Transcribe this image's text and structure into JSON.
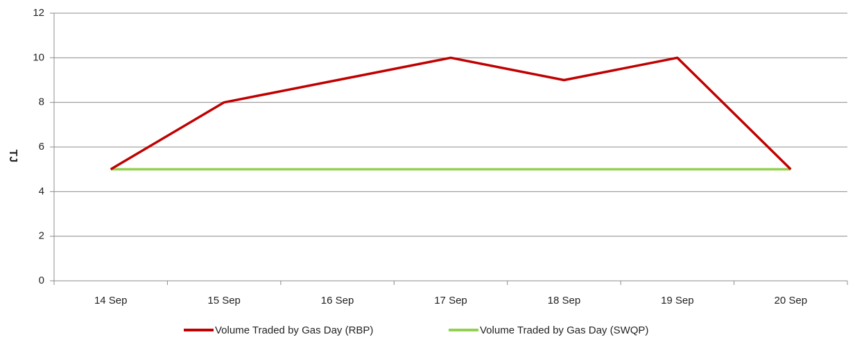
{
  "chart_data": {
    "type": "line",
    "ylabel": "TJ",
    "categories": [
      "14 Sep",
      "15 Sep",
      "16 Sep",
      "17 Sep",
      "18 Sep",
      "19 Sep",
      "20 Sep"
    ],
    "series": [
      {
        "name": "Volume Traded by Gas Day (RBP)",
        "color": "#c00000",
        "values": [
          5,
          8,
          9,
          10,
          9,
          10,
          5
        ]
      },
      {
        "name": "Volume Traded by Gas Day (SWQP)",
        "color": "#92d050",
        "values": [
          5,
          5,
          5,
          5,
          5,
          5,
          5
        ]
      }
    ],
    "ylim": [
      0,
      12
    ],
    "yticks": [
      0,
      2,
      4,
      6,
      8,
      10,
      12
    ],
    "grid": true,
    "legend": "bottom"
  }
}
